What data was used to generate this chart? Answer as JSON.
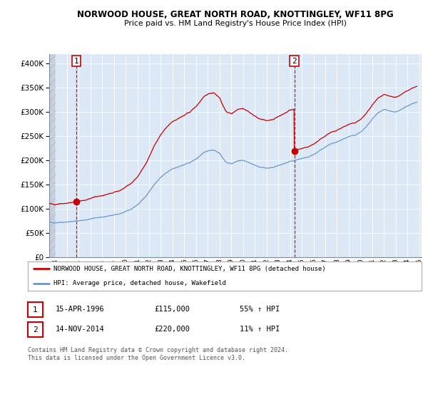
{
  "title": "NORWOOD HOUSE, GREAT NORTH ROAD, KNOTTINGLEY, WF11 8PG",
  "subtitle": "Price paid vs. HM Land Registry's House Price Index (HPI)",
  "background_color": "#ffffff",
  "plot_bg_color": "#dce8f5",
  "legend_label_red": "NORWOOD HOUSE, GREAT NORTH ROAD, KNOTTINGLEY, WF11 8PG (detached house)",
  "legend_label_blue": "HPI: Average price, detached house, Wakefield",
  "sale1_date": "15-APR-1996",
  "sale1_price": 115000,
  "sale1_label": "1",
  "sale1_pct": "55% ↑ HPI",
  "sale2_date": "14-NOV-2014",
  "sale2_price": 220000,
  "sale2_label": "2",
  "sale2_pct": "11% ↑ HPI",
  "footer": "Contains HM Land Registry data © Crown copyright and database right 2024.\nThis data is licensed under the Open Government Licence v3.0.",
  "red_color": "#cc0000",
  "blue_color": "#6699cc",
  "ylim": [
    0,
    420000
  ],
  "xlim_start": 1994.0,
  "xlim_end": 2025.7,
  "sale1_year": 1996.29,
  "sale2_year": 2014.88
}
